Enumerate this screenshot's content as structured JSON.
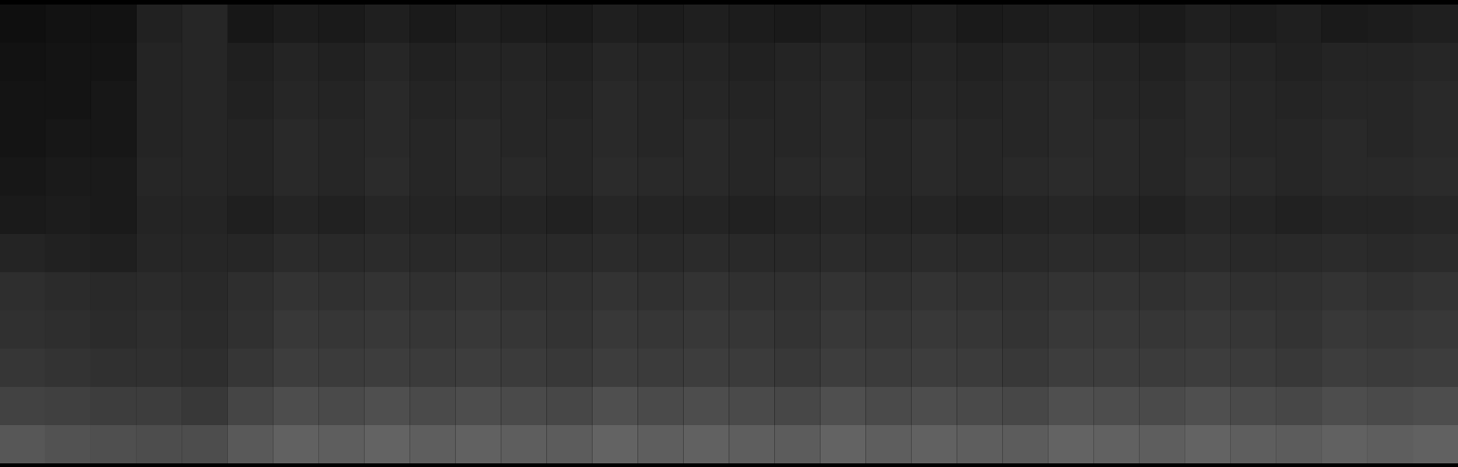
{
  "chart_data": {
    "type": "heatmap",
    "tick_labels": false,
    "color_range": [
      0,
      100
    ],
    "cells": [
      [
        6,
        7,
        7,
        13,
        15,
        9,
        11,
        10,
        12,
        10,
        12,
        11,
        10,
        12,
        11,
        12,
        11,
        10,
        12,
        11,
        12,
        10,
        11,
        12,
        11,
        10,
        12,
        11,
        12,
        10,
        11,
        12
      ],
      [
        7,
        8,
        8,
        14,
        15,
        12,
        14,
        13,
        15,
        13,
        14,
        14,
        13,
        15,
        14,
        14,
        13,
        14,
        15,
        13,
        14,
        13,
        14,
        15,
        14,
        13,
        15,
        14,
        13,
        14,
        14,
        15
      ],
      [
        8,
        8,
        9,
        14,
        15,
        13,
        15,
        14,
        16,
        14,
        15,
        15,
        14,
        16,
        15,
        15,
        14,
        15,
        16,
        14,
        15,
        14,
        15,
        16,
        15,
        14,
        16,
        15,
        14,
        15,
        15,
        16
      ],
      [
        8,
        9,
        9,
        14,
        15,
        14,
        16,
        15,
        16,
        15,
        16,
        15,
        15,
        16,
        15,
        16,
        15,
        15,
        16,
        15,
        16,
        15,
        15,
        16,
        16,
        15,
        16,
        15,
        15,
        16,
        15,
        16
      ],
      [
        9,
        10,
        10,
        15,
        15,
        14,
        16,
        15,
        17,
        15,
        16,
        16,
        15,
        17,
        16,
        16,
        15,
        16,
        17,
        15,
        16,
        15,
        16,
        17,
        16,
        15,
        17,
        16,
        15,
        16,
        16,
        17
      ],
      [
        10,
        11,
        10,
        14,
        14,
        12,
        14,
        13,
        15,
        14,
        14,
        14,
        13,
        15,
        14,
        14,
        13,
        14,
        15,
        14,
        14,
        13,
        14,
        15,
        14,
        13,
        15,
        14,
        13,
        14,
        14,
        15
      ],
      [
        14,
        13,
        12,
        15,
        15,
        15,
        17,
        16,
        17,
        16,
        17,
        16,
        16,
        17,
        16,
        17,
        16,
        16,
        17,
        16,
        17,
        16,
        16,
        17,
        17,
        16,
        17,
        16,
        16,
        17,
        16,
        17
      ],
      [
        18,
        17,
        16,
        17,
        16,
        18,
        20,
        19,
        20,
        19,
        20,
        19,
        19,
        20,
        19,
        20,
        19,
        19,
        20,
        19,
        20,
        19,
        19,
        20,
        20,
        19,
        20,
        19,
        19,
        20,
        19,
        20
      ],
      [
        19,
        18,
        17,
        18,
        17,
        19,
        22,
        21,
        22,
        21,
        22,
        21,
        20,
        22,
        21,
        22,
        21,
        20,
        22,
        21,
        22,
        21,
        20,
        22,
        22,
        21,
        22,
        21,
        20,
        22,
        21,
        22
      ],
      [
        21,
        20,
        19,
        19,
        18,
        21,
        24,
        23,
        24,
        23,
        24,
        23,
        22,
        24,
        23,
        24,
        23,
        22,
        24,
        23,
        24,
        23,
        22,
        24,
        24,
        23,
        24,
        23,
        22,
        24,
        23,
        24
      ],
      [
        26,
        25,
        24,
        24,
        22,
        27,
        30,
        29,
        31,
        29,
        30,
        29,
        28,
        31,
        29,
        30,
        29,
        28,
        31,
        29,
        30,
        29,
        28,
        31,
        30,
        29,
        31,
        29,
        28,
        30,
        29,
        30
      ],
      [
        34,
        32,
        31,
        30,
        30,
        35,
        38,
        37,
        39,
        37,
        38,
        37,
        36,
        39,
        37,
        38,
        37,
        36,
        39,
        37,
        38,
        37,
        36,
        39,
        38,
        37,
        39,
        37,
        36,
        38,
        37,
        38
      ]
    ]
  }
}
